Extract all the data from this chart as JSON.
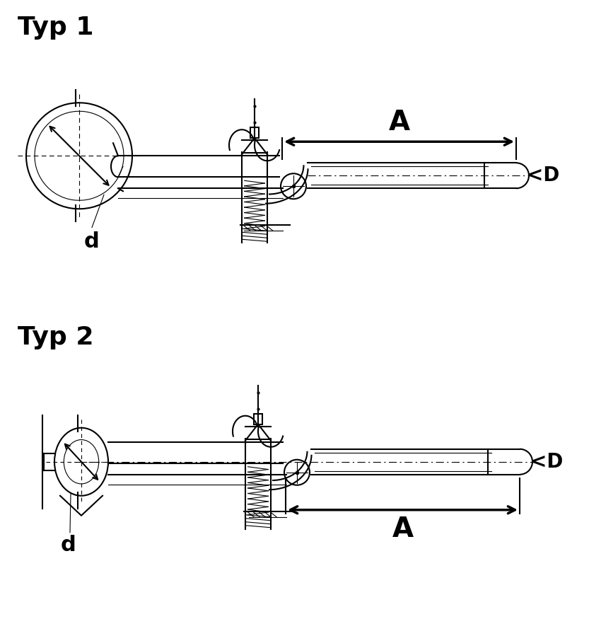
{
  "bg_color": "#ffffff",
  "line_color": "#000000",
  "title1": "Typ 1",
  "title2": "Typ 2",
  "label_A": "A",
  "label_d": "d",
  "label_D": "<D",
  "title_fontsize": 26,
  "label_fontsize": 18,
  "fig_width": 8.33,
  "fig_height": 8.75,
  "dpi": 100
}
